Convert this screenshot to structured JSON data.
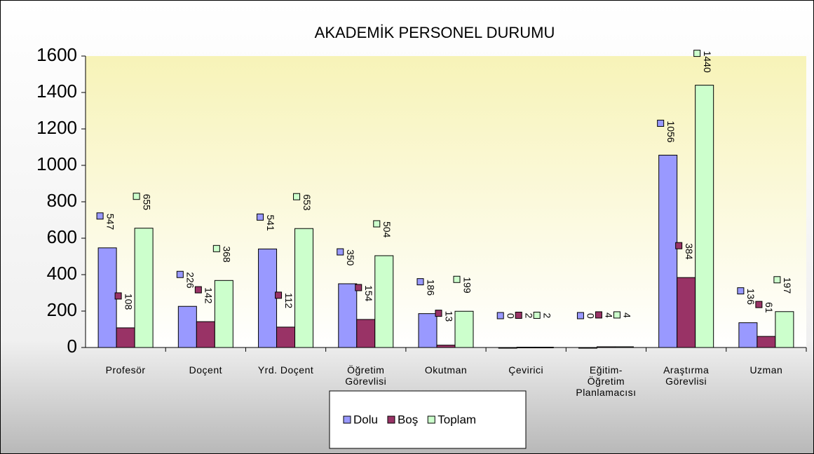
{
  "chart_data": {
    "type": "bar",
    "title": "AKADEMİK PERSONEL DURUMU",
    "categories": [
      "Profesör",
      "Doçent",
      "Yrd. Doçent",
      "Öğretim Görevlisi",
      "Okutman",
      "Çevirici",
      "Eğitim-Öğretim Planlamacısı",
      "Araştırma Görevlisi",
      "Uzman"
    ],
    "series": [
      {
        "name": "Dolu",
        "color": "#9999ff",
        "values": [
          547,
          226,
          541,
          350,
          186,
          0,
          0,
          1056,
          136
        ]
      },
      {
        "name": "Boş",
        "color": "#993366",
        "values": [
          108,
          142,
          112,
          154,
          13,
          2,
          4,
          384,
          61
        ]
      },
      {
        "name": "Toplam",
        "color": "#ccffcc",
        "values": [
          655,
          368,
          653,
          504,
          199,
          2,
          4,
          1440,
          197
        ]
      }
    ],
    "ylim": [
      0,
      1600
    ],
    "yticks": [
      0,
      200,
      400,
      600,
      800,
      1000,
      1200,
      1400,
      1600
    ]
  }
}
